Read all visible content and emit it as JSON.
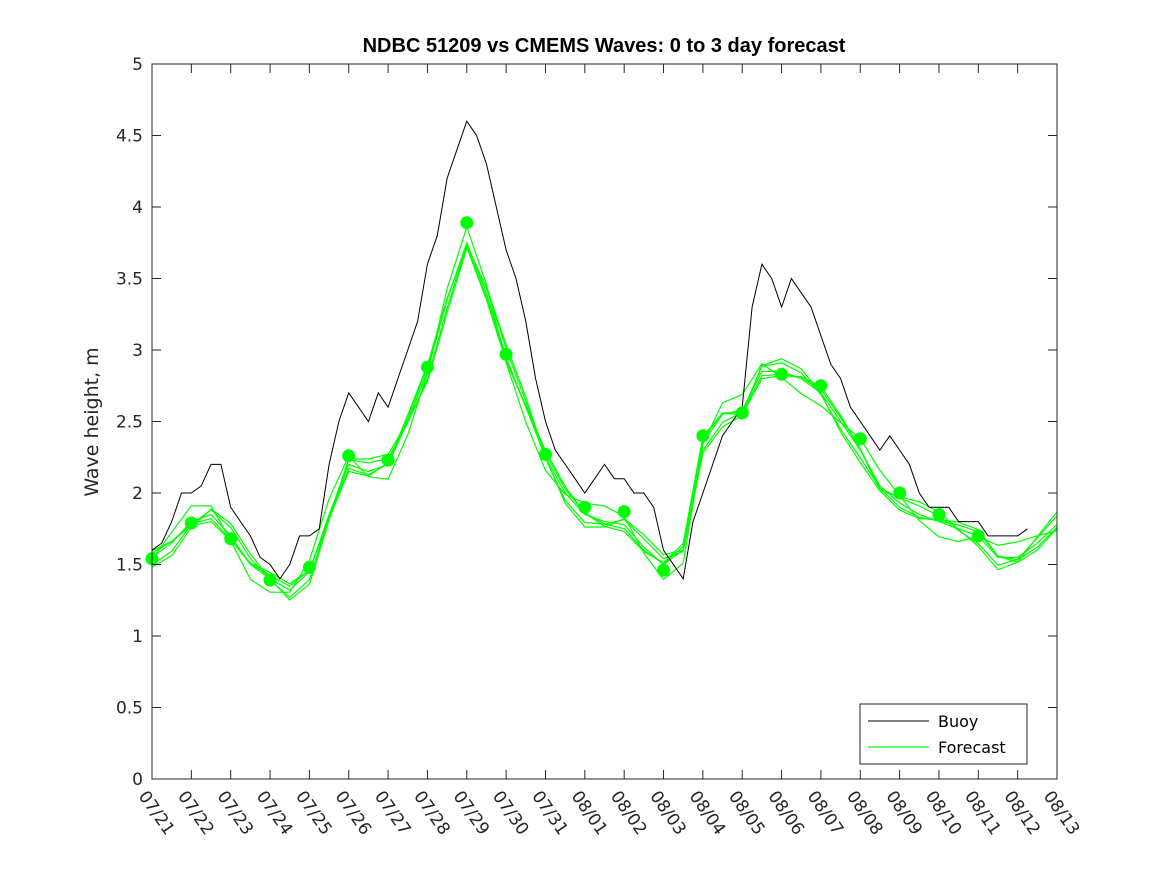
{
  "chart_data": {
    "type": "line",
    "title": "NDBC 51209 vs CMEMS Waves: 0 to 3 day forecast",
    "xlabel": "",
    "ylabel": "Wave height, m",
    "ylim": [
      0,
      5
    ],
    "xlim": [
      "07/21",
      "08/13"
    ],
    "yticks": [
      "0",
      "0.5",
      "1",
      "1.5",
      "2",
      "2.5",
      "3",
      "3.5",
      "4",
      "4.5",
      "5"
    ],
    "xticks": [
      "07/21",
      "07/22",
      "07/23",
      "07/24",
      "07/25",
      "07/26",
      "07/27",
      "07/28",
      "07/29",
      "07/30",
      "07/31",
      "08/01",
      "08/02",
      "08/03",
      "08/04",
      "08/05",
      "08/06",
      "08/07",
      "08/08",
      "08/09",
      "08/10",
      "08/11",
      "08/12",
      "08/13"
    ],
    "grid": false,
    "legend_position": "bottom-right",
    "legend": [
      "Buoy",
      "Forecast"
    ],
    "colors": {
      "buoy": "#000000",
      "forecast": "#00ff00"
    },
    "buoy": {
      "name": "Buoy",
      "x": [
        "07/21",
        "07/21.25",
        "07/21.5",
        "07/21.75",
        "07/22",
        "07/22.25",
        "07/22.5",
        "07/22.75",
        "07/23",
        "07/23.25",
        "07/23.5",
        "07/23.75",
        "07/24",
        "07/24.25",
        "07/24.5",
        "07/24.75",
        "07/25",
        "07/25.25",
        "07/25.5",
        "07/25.75",
        "07/26",
        "07/26.25",
        "07/26.5",
        "07/26.75",
        "07/27",
        "07/27.25",
        "07/27.5",
        "07/27.75",
        "07/28",
        "07/28.25",
        "07/28.5",
        "07/28.75",
        "07/29",
        "07/29.25",
        "07/29.5",
        "07/29.75",
        "07/30",
        "07/30.25",
        "07/30.5",
        "07/30.75",
        "07/31",
        "07/31.25",
        "07/31.5",
        "07/31.75",
        "08/01",
        "08/01.25",
        "08/01.5",
        "08/01.75",
        "08/02",
        "08/02.25",
        "08/02.5",
        "08/02.75",
        "08/03",
        "08/03.25",
        "08/03.5",
        "08/03.75",
        "08/04",
        "08/04.25",
        "08/04.5",
        "08/04.75",
        "08/05",
        "08/05.25",
        "08/05.5",
        "08/05.75",
        "08/06",
        "08/06.25",
        "08/06.5",
        "08/06.75",
        "08/07",
        "08/07.25",
        "08/07.5",
        "08/07.75",
        "08/08",
        "08/08.25",
        "08/08.5",
        "08/08.75",
        "08/09",
        "08/09.25",
        "08/09.5",
        "08/09.75",
        "08/10",
        "08/10.25",
        "08/10.5",
        "08/10.75",
        "08/11",
        "08/11.25",
        "08/11.5",
        "08/11.75",
        "08/12",
        "08/12.25"
      ],
      "y": [
        1.6,
        1.65,
        1.8,
        2.0,
        2.0,
        2.05,
        2.2,
        2.2,
        1.9,
        1.8,
        1.7,
        1.55,
        1.5,
        1.4,
        1.5,
        1.7,
        1.7,
        1.75,
        2.2,
        2.5,
        2.7,
        2.6,
        2.5,
        2.7,
        2.6,
        2.8,
        3.0,
        3.2,
        3.6,
        3.8,
        4.2,
        4.4,
        4.6,
        4.5,
        4.3,
        4.0,
        3.7,
        3.5,
        3.2,
        2.8,
        2.5,
        2.3,
        2.2,
        2.1,
        2.0,
        2.1,
        2.2,
        2.1,
        2.1,
        2.0,
        2.0,
        1.9,
        1.6,
        1.5,
        1.4,
        1.8,
        2.0,
        2.2,
        2.4,
        2.5,
        2.6,
        3.3,
        3.6,
        3.5,
        3.3,
        3.5,
        3.4,
        3.3,
        3.1,
        2.9,
        2.8,
        2.6,
        2.5,
        2.4,
        2.3,
        2.4,
        2.3,
        2.2,
        2.0,
        1.9,
        1.9,
        1.9,
        1.8,
        1.8,
        1.8,
        1.7,
        1.7,
        1.7,
        1.7,
        1.75
      ]
    },
    "forecast": {
      "name": "Forecast",
      "x": [
        "07/21",
        "07/21.5",
        "07/22",
        "07/22.5",
        "07/23",
        "07/23.5",
        "07/24",
        "07/24.5",
        "07/25",
        "07/25.5",
        "07/26",
        "07/26.5",
        "07/27",
        "07/27.5",
        "07/28",
        "07/28.5",
        "07/29",
        "07/29.5",
        "07/30",
        "07/30.5",
        "07/31",
        "07/31.5",
        "08/01",
        "08/01.5",
        "08/02",
        "08/02.5",
        "08/03",
        "08/03.5",
        "08/04",
        "08/04.5",
        "08/05",
        "08/05.5",
        "08/06",
        "08/06.5",
        "08/07",
        "08/07.5",
        "08/08",
        "08/08.5",
        "08/09",
        "08/09.5",
        "08/10",
        "08/10.5",
        "08/11",
        "08/11.5",
        "08/12",
        "08/12.5",
        "08/13"
      ],
      "y": [
        1.55,
        1.65,
        1.8,
        1.85,
        1.7,
        1.5,
        1.4,
        1.32,
        1.45,
        1.85,
        2.2,
        2.15,
        2.2,
        2.5,
        2.85,
        3.35,
        3.75,
        3.4,
        2.95,
        2.6,
        2.25,
        2.0,
        1.85,
        1.8,
        1.78,
        1.62,
        1.5,
        1.6,
        2.35,
        2.55,
        2.58,
        2.85,
        2.85,
        2.8,
        2.7,
        2.5,
        2.3,
        2.05,
        1.93,
        1.85,
        1.8,
        1.75,
        1.7,
        1.55,
        1.55,
        1.65,
        1.78
      ]
    },
    "forecast_markers": {
      "x": [
        "07/21",
        "07/22",
        "07/23",
        "07/24",
        "07/25",
        "07/26",
        "07/27",
        "07/28",
        "07/29",
        "07/30",
        "07/31",
        "08/01",
        "08/02",
        "08/03",
        "08/04",
        "08/05",
        "08/06",
        "08/07",
        "08/08",
        "08/09",
        "08/10",
        "08/11"
      ],
      "y": [
        1.54,
        1.79,
        1.68,
        1.39,
        1.48,
        2.26,
        2.23,
        2.88,
        3.89,
        2.97,
        2.27,
        1.9,
        1.87,
        1.46,
        2.4,
        2.56,
        2.83,
        2.75,
        2.38,
        2.0,
        1.85,
        1.7
      ]
    }
  }
}
